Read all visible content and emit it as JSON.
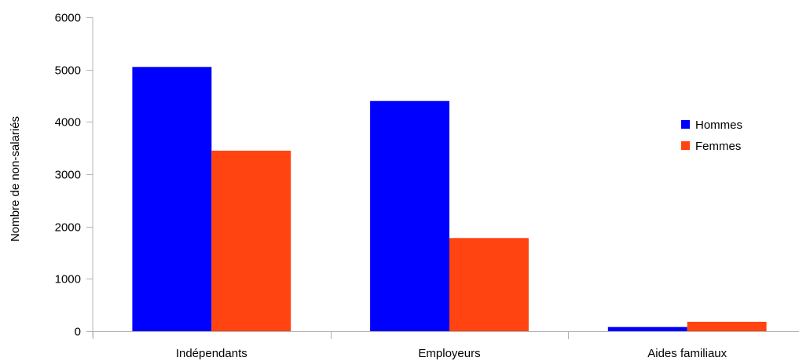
{
  "chart_data": {
    "type": "bar",
    "title": "",
    "xlabel": "",
    "ylabel": "Nombre de non-salariés",
    "categories": [
      "Indépendants",
      "Employeurs",
      "Aides familiaux"
    ],
    "series": [
      {
        "name": "Hommes",
        "color": "#0000ff",
        "values": [
          5050,
          4400,
          80
        ]
      },
      {
        "name": "Femmes",
        "color": "#ff4411",
        "values": [
          3450,
          1780,
          180
        ]
      }
    ],
    "ylim": [
      0,
      6000
    ],
    "yticks": [
      0,
      1000,
      2000,
      3000,
      4000,
      5000,
      6000
    ],
    "grid": false,
    "legend_position": "right"
  }
}
